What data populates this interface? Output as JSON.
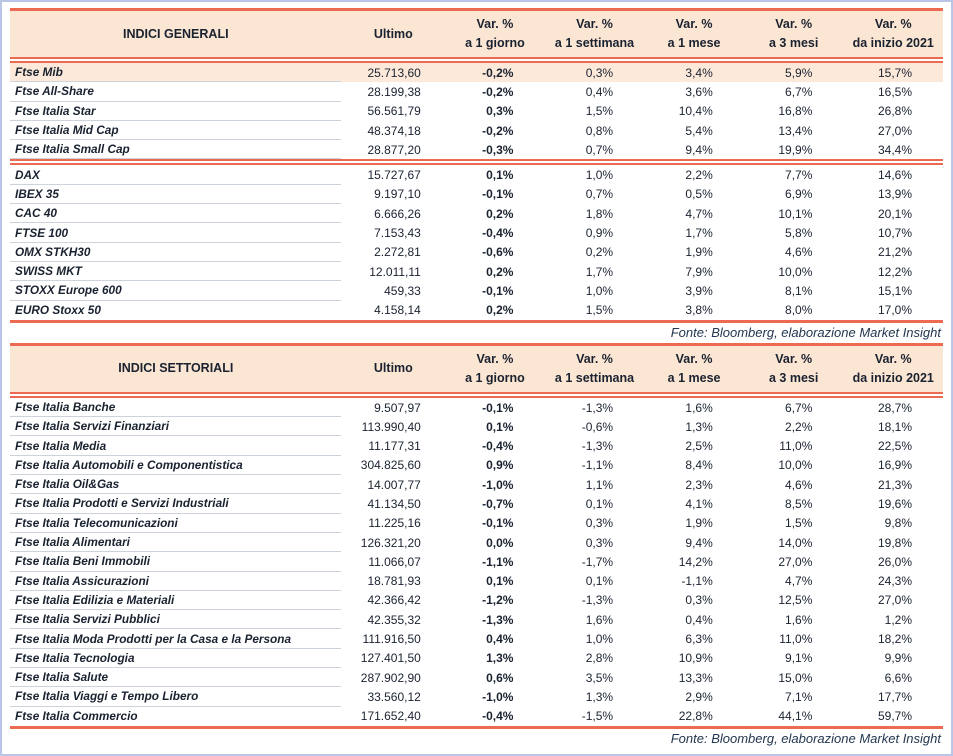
{
  "colors": {
    "accent_red": "#ec6a52",
    "header_fill": "#fbe5d3",
    "highlight_fill": "#fce9da",
    "text": "#1a2230",
    "source_text": "#233750",
    "row_line": "#cdd3da",
    "frame_border": "#b9c6e6"
  },
  "tables": [
    {
      "title": "INDICI GENERALI",
      "col_ultimo": "Ultimo",
      "pct_cols": [
        {
          "l1": "Var. %",
          "l2": "a 1 giorno"
        },
        {
          "l1": "Var. %",
          "l2": "a 1 settimana"
        },
        {
          "l1": "Var. %",
          "l2": "a 1 mese"
        },
        {
          "l1": "Var. %",
          "l2": "a 3 mesi"
        },
        {
          "l1": "Var. %",
          "l2": "da inizio 2021"
        }
      ],
      "rows": [
        {
          "name": "Ftse Mib",
          "ultimo": "25.713,60",
          "d1": "-0,2%",
          "w1": "0,3%",
          "m1": "3,4%",
          "m3": "5,9%",
          "ytd": "15,7%",
          "highlight": true
        },
        {
          "name": "Ftse All-Share",
          "ultimo": "28.199,38",
          "d1": "-0,2%",
          "w1": "0,4%",
          "m1": "3,6%",
          "m3": "6,7%",
          "ytd": "16,5%"
        },
        {
          "name": "Ftse Italia Star",
          "ultimo": "56.561,79",
          "d1": "0,3%",
          "w1": "1,5%",
          "m1": "10,4%",
          "m3": "16,8%",
          "ytd": "26,8%"
        },
        {
          "name": "Ftse Italia Mid Cap",
          "ultimo": "48.374,18",
          "d1": "-0,2%",
          "w1": "0,8%",
          "m1": "5,4%",
          "m3": "13,4%",
          "ytd": "27,0%"
        },
        {
          "name": "Ftse Italia Small Cap",
          "ultimo": "28.877,20",
          "d1": "-0,3%",
          "w1": "0,7%",
          "m1": "9,4%",
          "m3": "19,9%",
          "ytd": "34,4%",
          "separator_after": true
        },
        {
          "name": "DAX",
          "ultimo": "15.727,67",
          "d1": "0,1%",
          "w1": "1,0%",
          "m1": "2,2%",
          "m3": "7,7%",
          "ytd": "14,6%"
        },
        {
          "name": "IBEX 35",
          "ultimo": "9.197,10",
          "d1": "-0,1%",
          "w1": "0,7%",
          "m1": "0,5%",
          "m3": "6,9%",
          "ytd": "13,9%"
        },
        {
          "name": "CAC 40",
          "ultimo": "6.666,26",
          "d1": "0,2%",
          "w1": "1,8%",
          "m1": "4,7%",
          "m3": "10,1%",
          "ytd": "20,1%"
        },
        {
          "name": "FTSE 100",
          "ultimo": "7.153,43",
          "d1": "-0,4%",
          "w1": "0,9%",
          "m1": "1,7%",
          "m3": "5,8%",
          "ytd": "10,7%"
        },
        {
          "name": "OMX STKH30",
          "ultimo": "2.272,81",
          "d1": "-0,6%",
          "w1": "0,2%",
          "m1": "1,9%",
          "m3": "4,6%",
          "ytd": "21,2%"
        },
        {
          "name": "SWISS MKT",
          "ultimo": "12.011,11",
          "d1": "0,2%",
          "w1": "1,7%",
          "m1": "7,9%",
          "m3": "10,0%",
          "ytd": "12,2%"
        },
        {
          "name": "STOXX Europe 600",
          "ultimo": "459,33",
          "d1": "-0,1%",
          "w1": "1,0%",
          "m1": "3,9%",
          "m3": "8,1%",
          "ytd": "15,1%"
        },
        {
          "name": "EURO Stoxx 50",
          "ultimo": "4.158,14",
          "d1": "0,2%",
          "w1": "1,5%",
          "m1": "3,8%",
          "m3": "8,0%",
          "ytd": "17,0%"
        }
      ],
      "fonte": "Fonte: Bloomberg, elaborazione Market Insight"
    },
    {
      "title": "INDICI SETTORIALI",
      "col_ultimo": "Ultimo",
      "pct_cols": [
        {
          "l1": "Var. %",
          "l2": "a 1 giorno"
        },
        {
          "l1": "Var. %",
          "l2": "a 1 settimana"
        },
        {
          "l1": "Var. %",
          "l2": "a 1 mese"
        },
        {
          "l1": "Var. %",
          "l2": "a 3 mesi"
        },
        {
          "l1": "Var. %",
          "l2": "da inizio 2021"
        }
      ],
      "rows": [
        {
          "name": "Ftse Italia Banche",
          "ultimo": "9.507,97",
          "d1": "-0,1%",
          "w1": "-1,3%",
          "m1": "1,6%",
          "m3": "6,7%",
          "ytd": "28,7%"
        },
        {
          "name": "Ftse Italia Servizi Finanziari",
          "ultimo": "113.990,40",
          "d1": "0,1%",
          "w1": "-0,6%",
          "m1": "1,3%",
          "m3": "2,2%",
          "ytd": "18,1%"
        },
        {
          "name": "Ftse Italia Media",
          "ultimo": "11.177,31",
          "d1": "-0,4%",
          "w1": "-1,3%",
          "m1": "2,5%",
          "m3": "11,0%",
          "ytd": "22,5%"
        },
        {
          "name": "Ftse Italia Automobili e Componentistica",
          "ultimo": "304.825,60",
          "d1": "0,9%",
          "w1": "-1,1%",
          "m1": "8,4%",
          "m3": "10,0%",
          "ytd": "16,9%"
        },
        {
          "name": "Ftse Italia Oil&Gas",
          "ultimo": "14.007,77",
          "d1": "-1,0%",
          "w1": "1,1%",
          "m1": "2,3%",
          "m3": "4,6%",
          "ytd": "21,3%"
        },
        {
          "name": "Ftse Italia Prodotti e Servizi Industriali",
          "ultimo": "41.134,50",
          "d1": "-0,7%",
          "w1": "0,1%",
          "m1": "4,1%",
          "m3": "8,5%",
          "ytd": "19,6%"
        },
        {
          "name": "Ftse Italia Telecomunicazioni",
          "ultimo": "11.225,16",
          "d1": "-0,1%",
          "w1": "0,3%",
          "m1": "1,9%",
          "m3": "1,5%",
          "ytd": "9,8%"
        },
        {
          "name": "Ftse Italia Alimentari",
          "ultimo": "126.321,20",
          "d1": "0,0%",
          "w1": "0,3%",
          "m1": "9,4%",
          "m3": "14,0%",
          "ytd": "19,8%"
        },
        {
          "name": "Ftse Italia Beni Immobili",
          "ultimo": "11.066,07",
          "d1": "-1,1%",
          "w1": "-1,7%",
          "m1": "14,2%",
          "m3": "27,0%",
          "ytd": "26,0%"
        },
        {
          "name": "Ftse Italia Assicurazioni",
          "ultimo": "18.781,93",
          "d1": "0,1%",
          "w1": "0,1%",
          "m1": "-1,1%",
          "m3": "4,7%",
          "ytd": "24,3%"
        },
        {
          "name": "Ftse Italia Edilizia e Materiali",
          "ultimo": "42.366,42",
          "d1": "-1,2%",
          "w1": "-1,3%",
          "m1": "0,3%",
          "m3": "12,5%",
          "ytd": "27,0%"
        },
        {
          "name": "Ftse Italia Servizi Pubblici",
          "ultimo": "42.355,32",
          "d1": "-1,3%",
          "w1": "1,6%",
          "m1": "0,4%",
          "m3": "1,6%",
          "ytd": "1,2%"
        },
        {
          "name": "Ftse Italia Moda Prodotti per la Casa e la Persona",
          "ultimo": "111.916,50",
          "d1": "0,4%",
          "w1": "1,0%",
          "m1": "6,3%",
          "m3": "11,0%",
          "ytd": "18,2%"
        },
        {
          "name": "Ftse Italia Tecnologia",
          "ultimo": "127.401,50",
          "d1": "1,3%",
          "w1": "2,8%",
          "m1": "10,9%",
          "m3": "9,1%",
          "ytd": "9,9%"
        },
        {
          "name": "Ftse Italia Salute",
          "ultimo": "287.902,90",
          "d1": "0,6%",
          "w1": "3,5%",
          "m1": "13,3%",
          "m3": "15,0%",
          "ytd": "6,6%"
        },
        {
          "name": "Ftse Italia Viaggi e Tempo Libero",
          "ultimo": "33.560,12",
          "d1": "-1,0%",
          "w1": "1,3%",
          "m1": "2,9%",
          "m3": "7,1%",
          "ytd": "17,7%"
        },
        {
          "name": "Ftse Italia Commercio",
          "ultimo": "171.652,40",
          "d1": "-0,4%",
          "w1": "-1,5%",
          "m1": "22,8%",
          "m3": "44,1%",
          "ytd": "59,7%"
        }
      ],
      "fonte": "Fonte: Bloomberg, elaborazione Market Insight"
    }
  ]
}
